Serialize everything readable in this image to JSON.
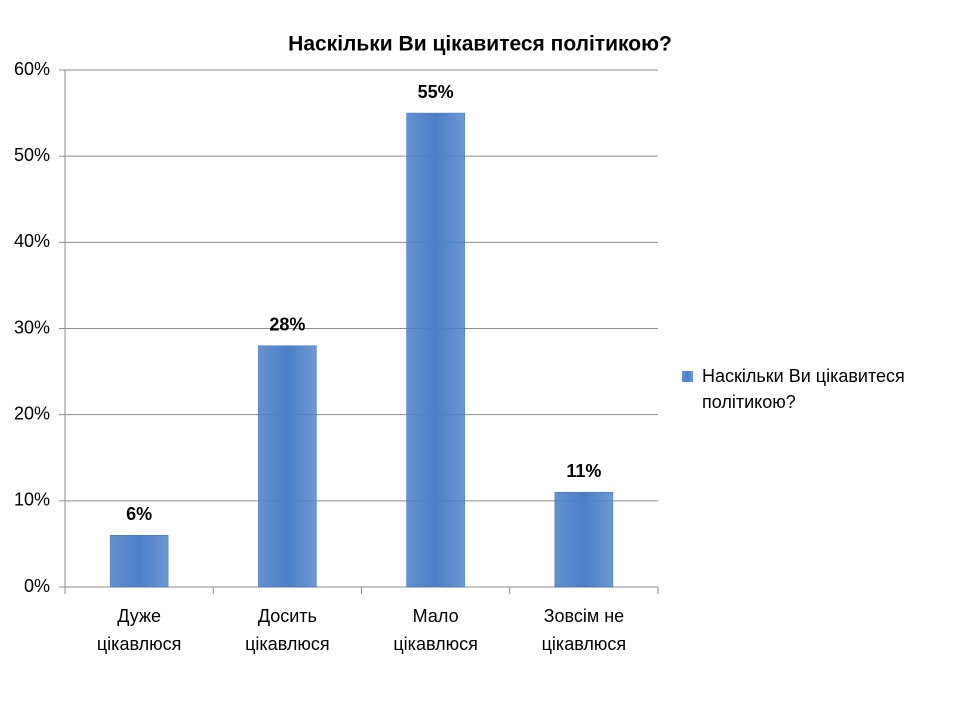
{
  "chart_data": {
    "type": "bar",
    "title": "Наскільки Ви цікавитеся політикою?",
    "categories": [
      "Дуже\nцікавлюся",
      "Досить\nцікавлюся",
      "Мало\nцікавлюся",
      "Зовсім не\nцікавлюся"
    ],
    "series": [
      {
        "name": "Наскільки Ви цікавитеся\nполітикою?",
        "color": "#4a7fc8",
        "values": [
          6,
          28,
          55,
          11
        ],
        "value_labels": [
          "6%",
          "28%",
          "55%",
          "11%"
        ]
      }
    ],
    "ylim": [
      0,
      60
    ],
    "yticks": [
      {
        "value": 0,
        "label": "0%"
      },
      {
        "value": 10,
        "label": "10%"
      },
      {
        "value": 20,
        "label": "20%"
      },
      {
        "value": 30,
        "label": "30%"
      },
      {
        "value": 40,
        "label": "40%"
      },
      {
        "value": 50,
        "label": "50%"
      },
      {
        "value": 60,
        "label": "60%"
      }
    ],
    "grid": true,
    "legend": "right"
  }
}
